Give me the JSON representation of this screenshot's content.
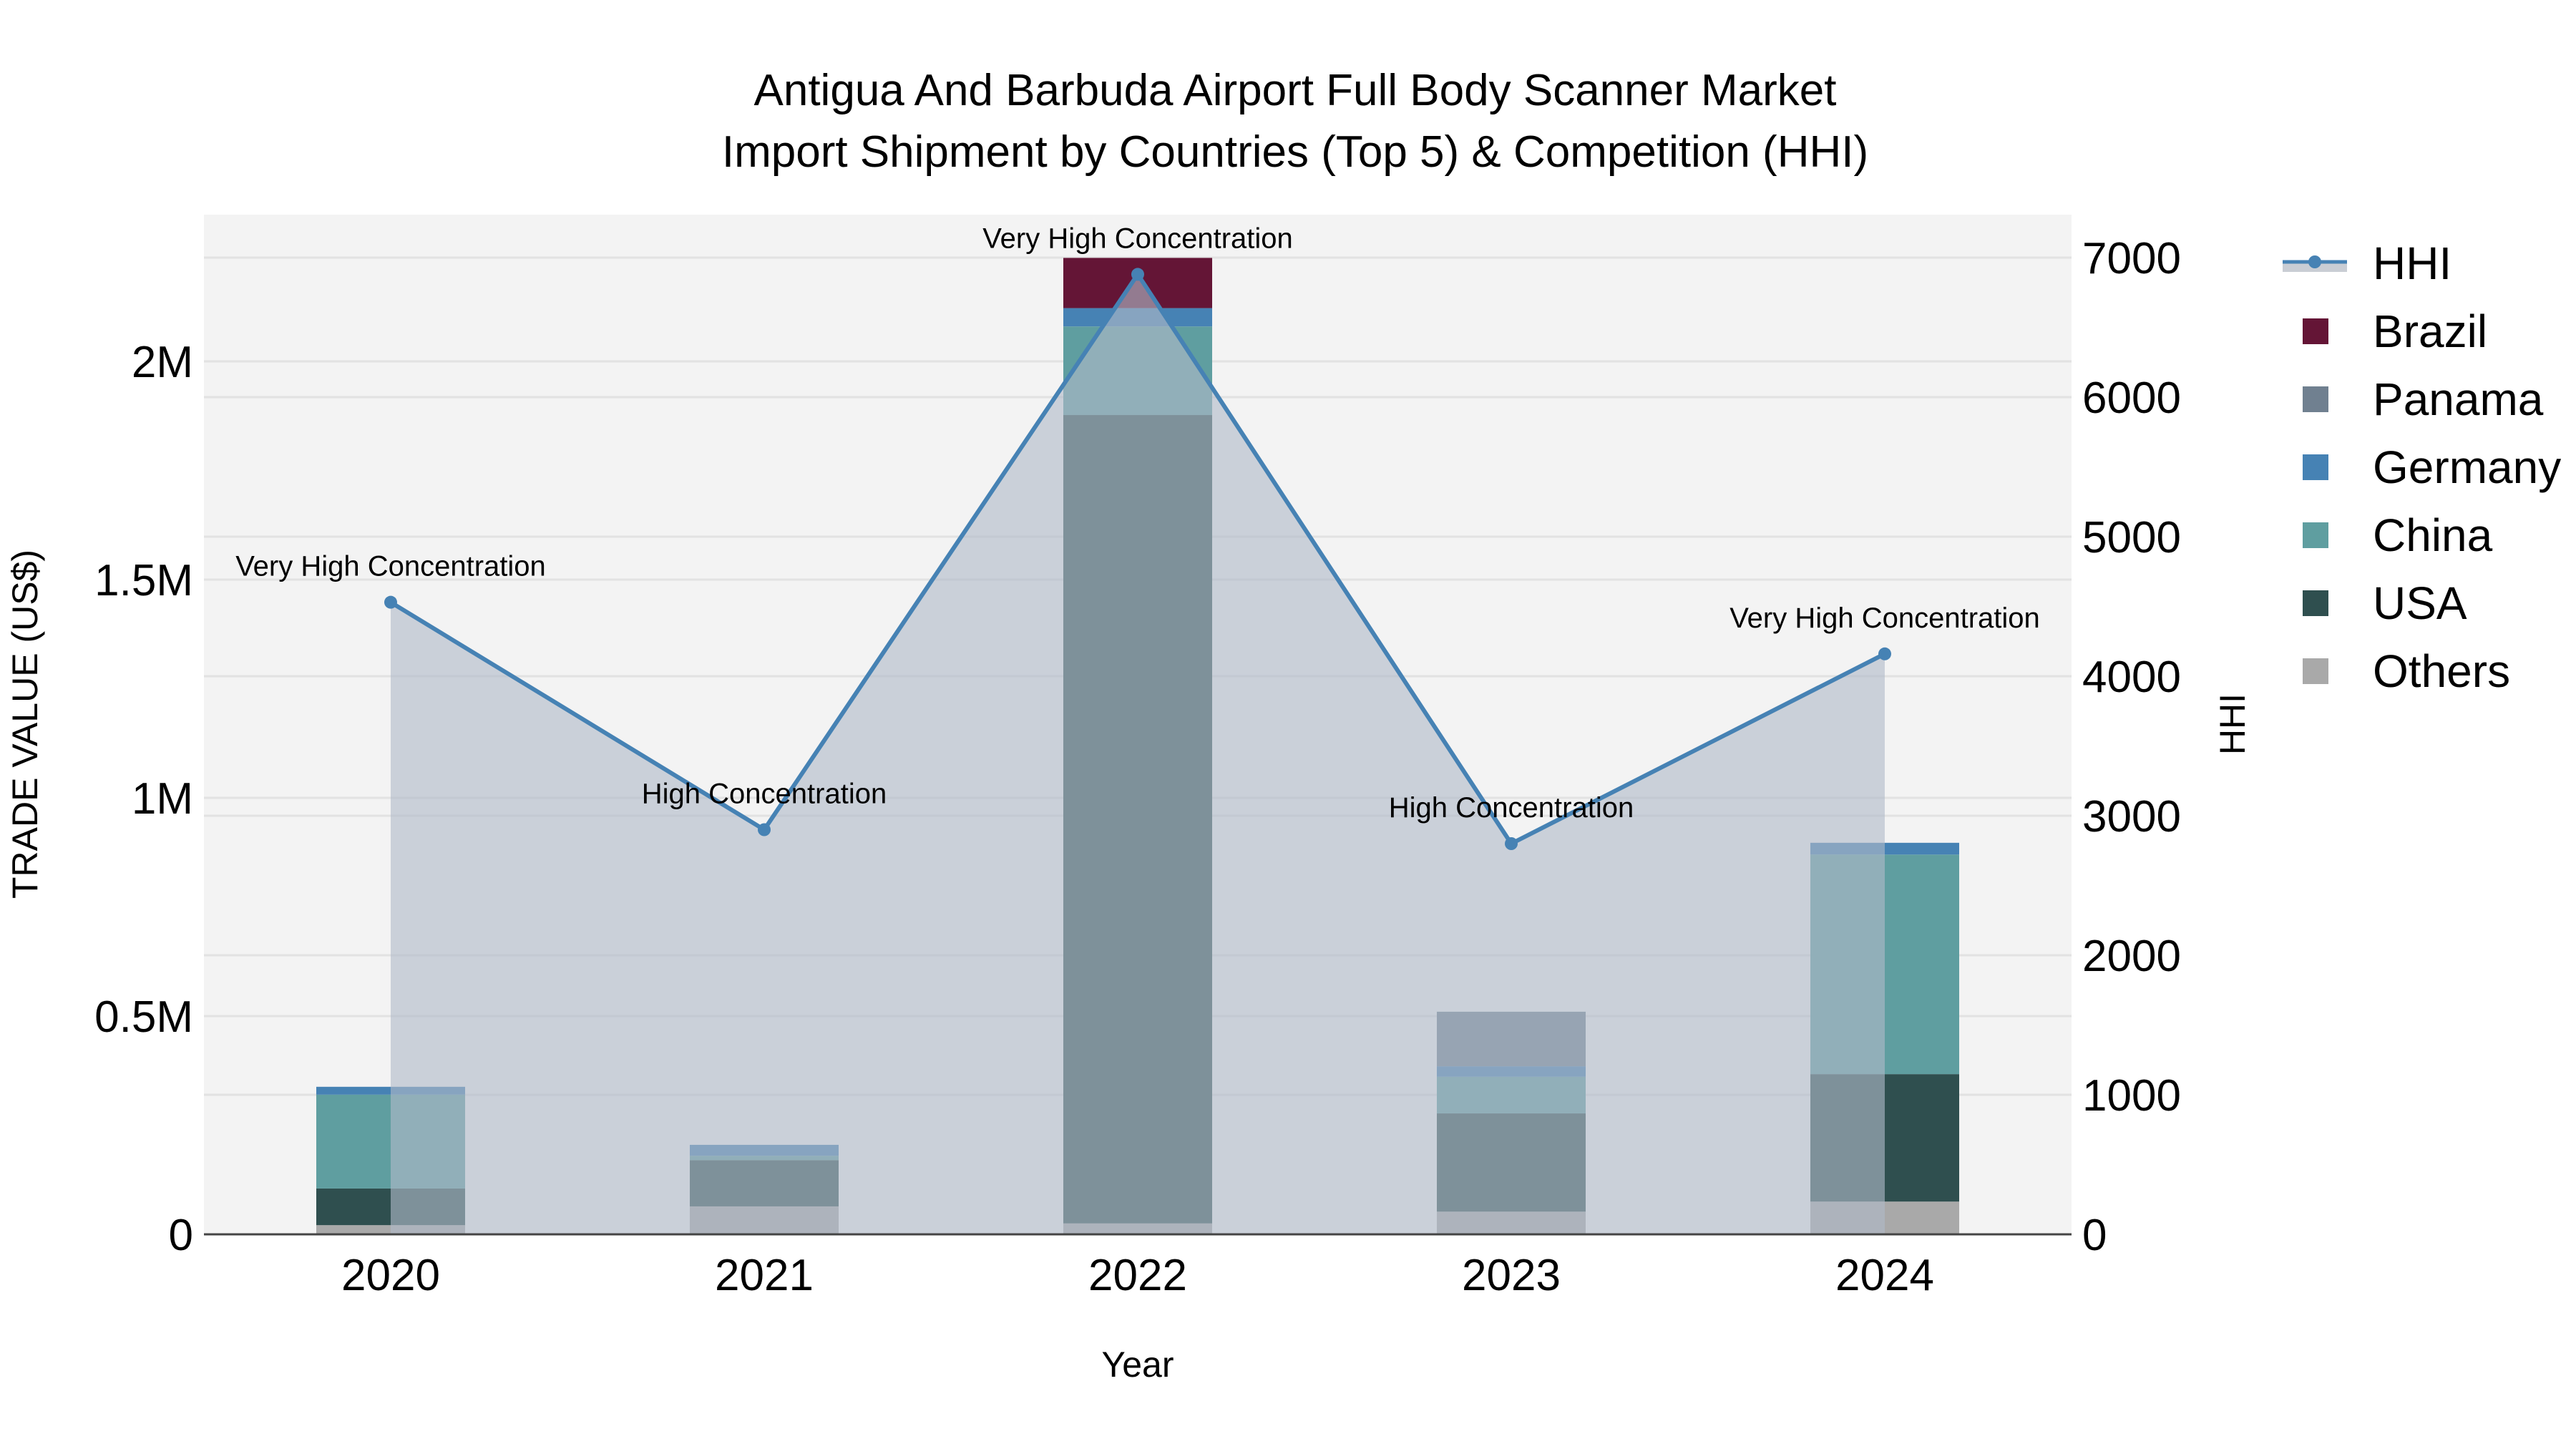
{
  "title": {
    "line1": "Antigua And Barbuda Airport Full Body Scanner Market",
    "line2": "Import Shipment by Countries (Top 5) & Competition (HHI)"
  },
  "axes": {
    "x_title": "Year",
    "y_left_title": "TRADE VALUE (US$)",
    "y_right_title": "HHI",
    "y_left_ticks": [
      "0",
      "0.5M",
      "1M",
      "1.5M",
      "2M"
    ],
    "y_right_ticks": [
      "0",
      "1000",
      "2000",
      "3000",
      "4000",
      "5000",
      "6000",
      "7000"
    ],
    "x_ticks": [
      "2020",
      "2021",
      "2022",
      "2023",
      "2024"
    ]
  },
  "legend": [
    {
      "label": "HHI",
      "type": "line",
      "color": "#4682b4"
    },
    {
      "label": "Brazil",
      "type": "bar",
      "color": "#641536"
    },
    {
      "label": "Panama",
      "type": "bar",
      "color": "#708090"
    },
    {
      "label": "Germany",
      "type": "bar",
      "color": "#4682b4"
    },
    {
      "label": "China",
      "type": "bar",
      "color": "#5f9ea0"
    },
    {
      "label": "USA",
      "type": "bar",
      "color": "#2f4f4f"
    },
    {
      "label": "Others",
      "type": "bar",
      "color": "#a9a9a9"
    }
  ],
  "chart_data": {
    "type": "bar",
    "stacked": true,
    "title": "Antigua And Barbuda Airport Full Body Scanner Market Import Shipment by Countries (Top 5) & Competition (HHI)",
    "xlabel": "Year",
    "ylabel": "TRADE VALUE (US$)",
    "y2label": "HHI",
    "categories": [
      "2020",
      "2021",
      "2022",
      "2023",
      "2024"
    ],
    "ylim": [
      0,
      2330000
    ],
    "y2lim": [
      0,
      7310
    ],
    "grid": true,
    "legend_position": "right",
    "series": [
      {
        "name": "Others",
        "color": "#a9a9a9",
        "values": [
          21000,
          64000,
          25000,
          52000,
          75000
        ]
      },
      {
        "name": "USA",
        "color": "#2f4f4f",
        "values": [
          84000,
          106000,
          1852000,
          225000,
          292000
        ]
      },
      {
        "name": "China",
        "color": "#5f9ea0",
        "values": [
          215000,
          10000,
          203000,
          84000,
          503000
        ]
      },
      {
        "name": "Germany",
        "color": "#4682b4",
        "values": [
          18000,
          25000,
          42000,
          24000,
          27000
        ]
      },
      {
        "name": "Panama",
        "color": "#708090",
        "values": [
          0,
          0,
          0,
          125000,
          0
        ]
      },
      {
        "name": "Brazil",
        "color": "#641536",
        "values": [
          0,
          0,
          115000,
          0,
          0
        ]
      }
    ],
    "line_series": {
      "name": "HHI",
      "axis": "right",
      "color": "#4682b4",
      "fill": "tozeroy",
      "values": [
        4530,
        2900,
        6880,
        2800,
        4160
      ],
      "annotations": [
        "Very High Concentration",
        "High Concentration",
        "Very High Concentration",
        "High Concentration",
        "Very High Concentration"
      ]
    }
  }
}
